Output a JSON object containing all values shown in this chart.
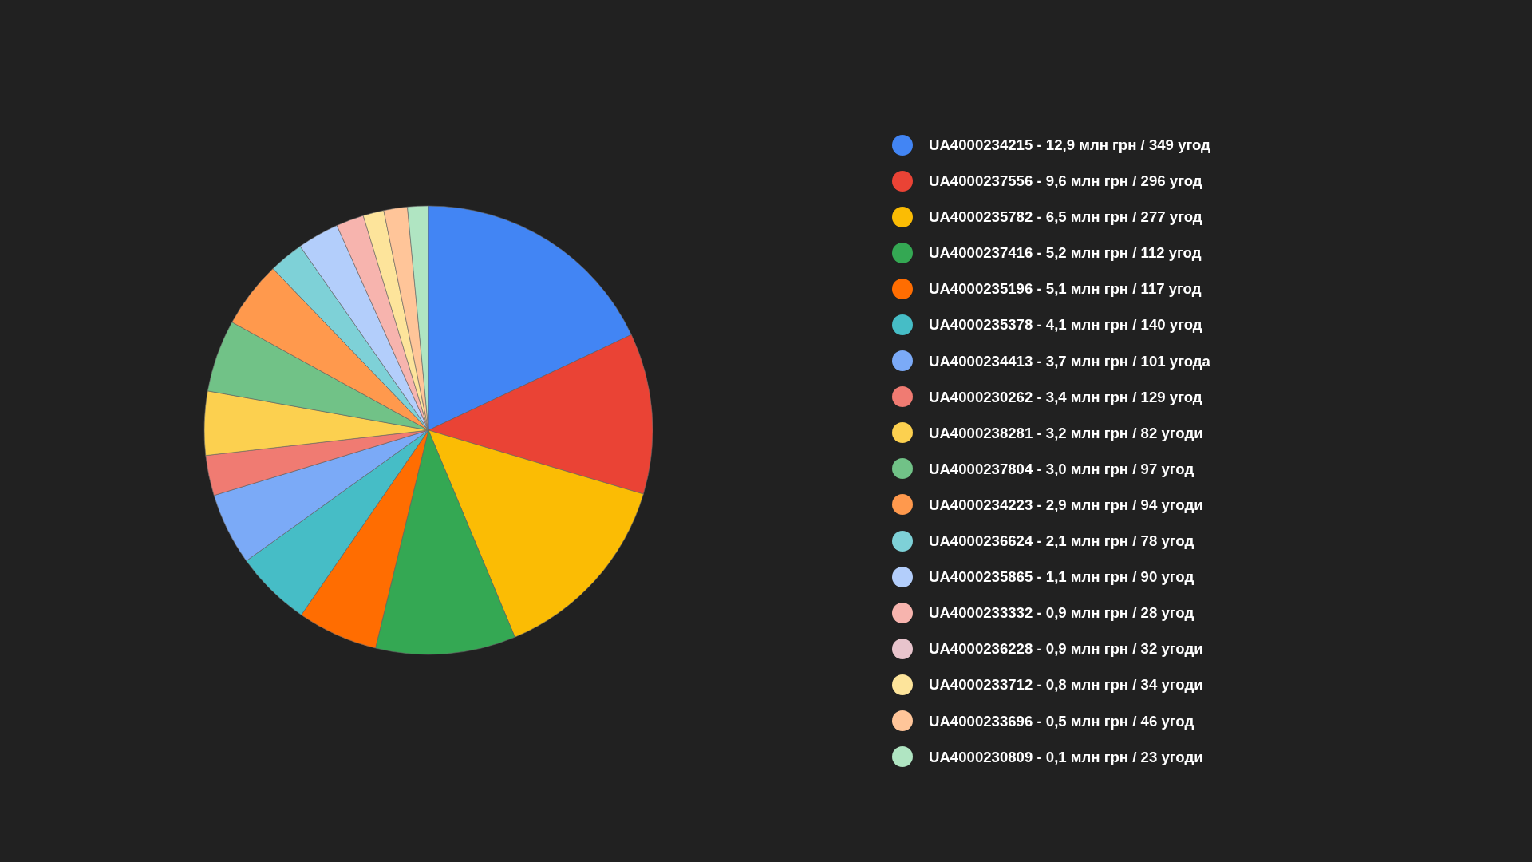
{
  "chart_data": {
    "type": "pie",
    "categories": [
      "UA4000234215 - 12,9 млн грн / 349 угод",
      "UA4000237556 - 9,6 млн грн / 296 угод",
      "UA4000235782 - 6,5 млн грн / 277 угод",
      "UA4000237416 - 5,2 млн грн / 112 угод",
      "UA4000235196 - 5,1 млн грн / 117 угод",
      "UA4000235378 - 4,1 млн грн / 140 угод",
      "UA4000234413 - 3,7 млн грн / 101 угода",
      "UA4000230262 - 3,4 млн грн / 129 угод",
      "UA4000238281 - 3,2 млн грн / 82 угоди",
      "UA4000237804 - 3,0 млн грн / 97 угод",
      "UA4000234223 - 2,9 млн грн / 94 угоди",
      "UA4000236624 - 2,1 млн грн / 78 угод",
      "UA4000235865 - 1,1 млн грн / 90 угод",
      "UA4000233332 - 0,9 млн грн / 28 угод",
      "UA4000236228 - 0,9 млн грн / 32 угоди",
      "UA4000233712 - 0,8 млн грн / 34 угоди",
      "UA4000233696 - 0,5 млн грн / 46 угод",
      "UA4000230809 - 0,1 млн грн / 23 угоди"
    ],
    "values": [
      18.0,
      11.6,
      14.1,
      10.1,
      5.8,
      5.5,
      5.2,
      2.9,
      4.6,
      5.2,
      4.8,
      2.5,
      3.0,
      2.0,
      null,
      1.5,
      1.7,
      1.5
    ],
    "colors": [
      "#4285f4",
      "#ea4335",
      "#fbbc04",
      "#34a853",
      "#ff6d01",
      "#46bdc6",
      "#7baaf7",
      "#f07b72",
      "#fcd04f",
      "#71c287",
      "#ff994d",
      "#7ed1d7",
      "#b3cefb",
      "#f7b4ae",
      "#e8c4cc",
      "#fde49b",
      "#ffc599",
      "#b0e5c2"
    ],
    "legend": "right"
  }
}
